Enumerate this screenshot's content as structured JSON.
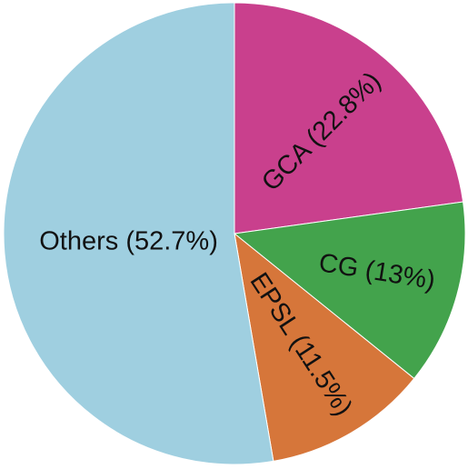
{
  "chart_data": {
    "type": "pie",
    "title": "",
    "start": "12 o'clock",
    "direction": "clockwise",
    "slices": [
      {
        "label": "GCA (22.8%)",
        "value": 22.8,
        "color": "#c9408d"
      },
      {
        "label": "CG (13%)",
        "value": 13.0,
        "color": "#43a34c"
      },
      {
        "label": "EPSL (11.5%)",
        "value": 11.5,
        "color": "#d6763a"
      },
      {
        "label": "Others (52.7%)",
        "value": 52.7,
        "color": "#9fcfe0"
      }
    ]
  }
}
